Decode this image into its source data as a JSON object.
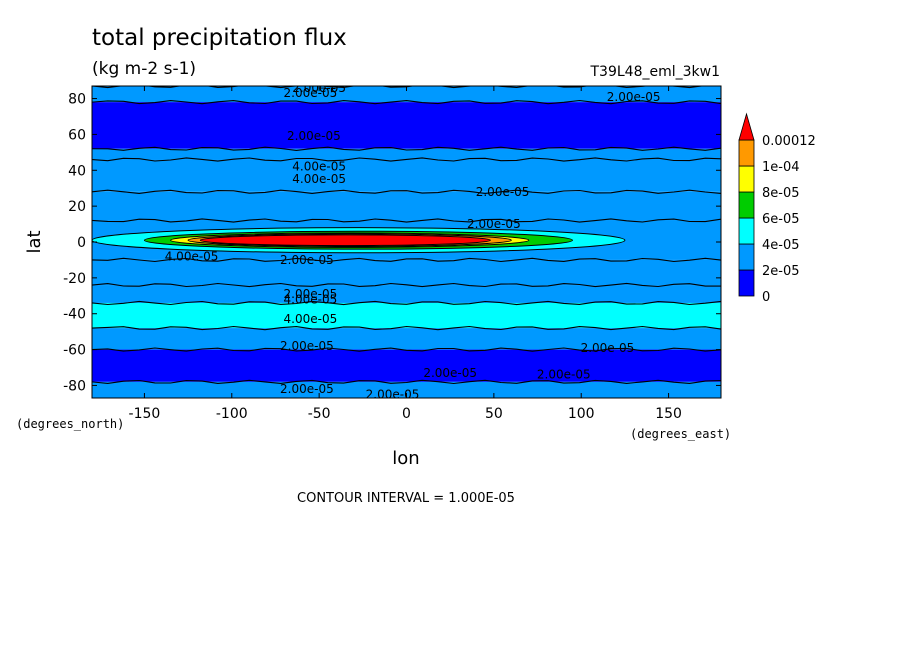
{
  "chart_data": {
    "type": "heatmap",
    "title": "total precipitation flux",
    "units": "(kg m-2 s-1)",
    "run_label": "T39L48_eml_3kw1",
    "xlabel": "lon",
    "xunit": "(degrees_east)",
    "ylabel": "lat",
    "yunit": "(degrees_north)",
    "xlim": [
      -180,
      180
    ],
    "ylim": [
      -87,
      87
    ],
    "xticks": [
      -150,
      -100,
      -50,
      0,
      50,
      100,
      150
    ],
    "xtick_labels": [
      "-150",
      "-100",
      "-50",
      "0",
      "50",
      "100",
      "150"
    ],
    "yticks": [
      -80,
      -60,
      -40,
      -20,
      0,
      20,
      40,
      60,
      80
    ],
    "ytick_labels": [
      "-80",
      "-60",
      "-40",
      "-20",
      "0",
      "20",
      "40",
      "60",
      "80"
    ],
    "contour_interval_text": "CONTOUR INTERVAL = 1.000E-05",
    "colorbar": {
      "levels": [
        0,
        2e-05,
        4e-05,
        6e-05,
        8e-05,
        0.0001,
        0.00012
      ],
      "labels": [
        "0",
        "2e-05",
        "4e-05",
        "6e-05",
        "8e-05",
        "1e-04",
        "0.00012"
      ],
      "colors": [
        "#0000ff",
        "#0099ff",
        "#00ffff",
        "#00cc00",
        "#ffff00",
        "#ff9900",
        "#ff0000"
      ]
    },
    "band_fill": [
      {
        "lat_min": 78,
        "lat_max": 87,
        "level": 2e-05
      },
      {
        "lat_min": 52,
        "lat_max": 78,
        "level": 1e-05
      },
      {
        "lat_min": 46,
        "lat_max": 52,
        "level": 2e-05
      },
      {
        "lat_min": 28,
        "lat_max": 46,
        "level": 3e-05
      },
      {
        "lat_min": 12,
        "lat_max": 28,
        "level": 2e-05
      },
      {
        "lat_min": -10,
        "lat_max": 12,
        "level": 3e-05
      },
      {
        "lat_min": -24,
        "lat_max": -10,
        "level": 2e-05
      },
      {
        "lat_min": -34,
        "lat_max": -24,
        "level": 2e-05
      },
      {
        "lat_min": -48,
        "lat_max": -34,
        "level": 4e-05
      },
      {
        "lat_min": -60,
        "lat_max": -48,
        "level": 2e-05
      },
      {
        "lat_min": -78,
        "lat_max": -60,
        "level": 1e-05
      },
      {
        "lat_min": -87,
        "lat_max": -78,
        "level": 2e-05
      }
    ],
    "equatorial_peak": {
      "lat_center": 1,
      "bands": [
        {
          "level": 4e-05,
          "lon_min": -180,
          "lon_max": 125,
          "lat_half": 7
        },
        {
          "level": 6e-05,
          "lon_min": -150,
          "lon_max": 95,
          "lat_half": 5
        },
        {
          "level": 8e-05,
          "lon_min": -135,
          "lon_max": 70,
          "lat_half": 4
        },
        {
          "level": 0.0001,
          "lon_min": -125,
          "lon_max": 60,
          "lat_half": 3.5
        },
        {
          "level": 0.00012,
          "lon_min": -118,
          "lon_max": 48,
          "lat_half": 3
        }
      ]
    },
    "contour_labels": [
      {
        "text": "2.00e-05",
        "lon": -50,
        "lat": 86
      },
      {
        "text": "2.00e-05",
        "lon": -55,
        "lat": 83
      },
      {
        "text": "2.00e-05",
        "lon": 130,
        "lat": 81
      },
      {
        "text": "2.00e-05",
        "lon": -53,
        "lat": 59
      },
      {
        "text": "4.00e-05",
        "lon": -50,
        "lat": 42
      },
      {
        "text": "4.00e-05",
        "lon": -50,
        "lat": 35
      },
      {
        "text": "2.00e-05",
        "lon": 55,
        "lat": 28
      },
      {
        "text": "2.00e-05",
        "lon": 50,
        "lat": 10
      },
      {
        "text": "4.00e-05",
        "lon": -123,
        "lat": -8
      },
      {
        "text": "2.00e-05",
        "lon": -57,
        "lat": -10
      },
      {
        "text": "2.00e-05",
        "lon": -55,
        "lat": -29
      },
      {
        "text": "4.00e-05",
        "lon": -55,
        "lat": -32
      },
      {
        "text": "4.00e-05",
        "lon": -55,
        "lat": -43
      },
      {
        "text": "2.00e-05",
        "lon": -57,
        "lat": -58
      },
      {
        "text": "2.00e-05",
        "lon": 115,
        "lat": -59
      },
      {
        "text": "2.00e-05",
        "lon": 25,
        "lat": -73
      },
      {
        "text": "2.00e-05",
        "lon": 90,
        "lat": -74
      },
      {
        "text": "2.00e-05",
        "lon": -57,
        "lat": -82
      },
      {
        "text": "2.00e-05",
        "lon": -8,
        "lat": -85
      }
    ]
  }
}
